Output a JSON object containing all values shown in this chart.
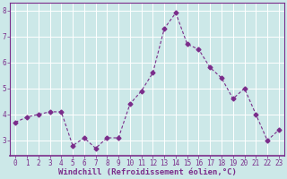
{
  "x": [
    0,
    1,
    2,
    3,
    4,
    5,
    6,
    7,
    8,
    9,
    10,
    11,
    12,
    13,
    14,
    15,
    16,
    17,
    18,
    19,
    20,
    21,
    22,
    23
  ],
  "y": [
    3.7,
    3.9,
    4.0,
    4.1,
    4.1,
    2.8,
    3.1,
    2.7,
    3.1,
    3.1,
    4.4,
    4.9,
    5.6,
    7.3,
    7.9,
    6.7,
    6.5,
    5.8,
    5.4,
    4.6,
    5.0,
    4.0,
    3.0,
    3.4
  ],
  "line_color": "#7B2D8B",
  "marker": "D",
  "marker_size": 2.5,
  "bg_color": "#cce8e8",
  "grid_color": "#ffffff",
  "xlabel": "Windchill (Refroidissement éolien,°C)",
  "xlim": [
    -0.5,
    23.5
  ],
  "ylim": [
    2.4,
    8.3
  ],
  "yticks": [
    3,
    4,
    5,
    6,
    7,
    8
  ],
  "xticks": [
    0,
    1,
    2,
    3,
    4,
    5,
    6,
    7,
    8,
    9,
    10,
    11,
    12,
    13,
    14,
    15,
    16,
    17,
    18,
    19,
    20,
    21,
    22,
    23
  ],
  "label_fontsize": 6.5,
  "tick_fontsize": 5.5,
  "tick_color": "#7B2D8B",
  "spine_color": "#7B2D8B",
  "axis_line_color": "#7B2D8B"
}
